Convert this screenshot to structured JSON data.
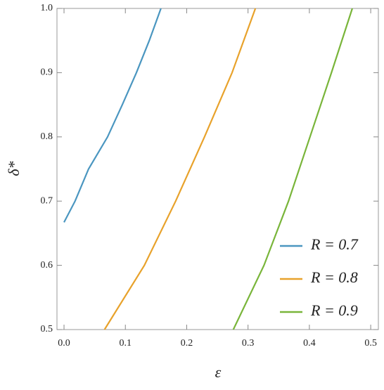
{
  "chart_data": {
    "type": "line",
    "x_label": "ε",
    "y_label": "δ*",
    "xlim": [
      -0.0115,
      0.5125
    ],
    "ylim": [
      0.5,
      1.0
    ],
    "xticks": [
      {
        "value": 0,
        "label": "0.0"
      },
      0.1,
      0.2,
      0.3,
      0.4,
      0.5
    ],
    "yticks": [
      0.5,
      0.6,
      0.7,
      0.8,
      0.9,
      {
        "value": 1,
        "label": "1.0"
      }
    ],
    "legend": "lower right",
    "series": [
      {
        "name": "R = 0.7",
        "color": "#4a96c0",
        "x": [
          0,
          0.018,
          0.04,
          0.071,
          0.095,
          0.118,
          0.139,
          0.158
        ],
        "values": [
          0.667,
          0.7,
          0.75,
          0.8,
          0.85,
          0.9,
          0.95,
          1.0
        ]
      },
      {
        "name": "R = 0.8",
        "color": "#e8a22b",
        "x": [
          0.066,
          0.131,
          0.182,
          0.229,
          0.274,
          0.312
        ],
        "values": [
          0.5,
          0.6,
          0.7,
          0.8,
          0.9,
          1.0
        ]
      },
      {
        "name": "R = 0.9",
        "color": "#79b53a",
        "x": [
          0.276,
          0.326,
          0.366,
          0.401,
          0.436,
          0.47
        ],
        "values": [
          0.5,
          0.6,
          0.7,
          0.8,
          0.9,
          1.0
        ]
      }
    ]
  }
}
